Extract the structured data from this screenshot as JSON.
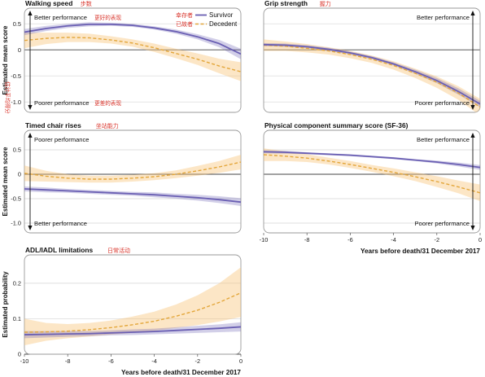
{
  "chart_data": [
    {
      "type": "line",
      "id": "walk",
      "title": "Walking speed",
      "title_zh": "步数",
      "ylabel": "Estimated mean score",
      "ylabel_zh": "估计平均得分",
      "xlim": [
        -10,
        0
      ],
      "ylim": [
        -1.2,
        0.8
      ],
      "yticks": [
        "0.5",
        "0",
        "-0.5",
        "-1.0"
      ],
      "ytick_values": [
        0.5,
        0,
        -0.5,
        -1.0
      ],
      "annotations": {
        "top": "Better performance",
        "top_zh": "更好的表现",
        "bottom": "Poorer performance",
        "bottom_zh": "更差的表现"
      },
      "legend": {
        "position": "top-right",
        "survivor": "Survivor",
        "survivor_zh": "幸存者",
        "decedent": "Decedent",
        "decedent_zh": "已故者"
      },
      "series": [
        {
          "name": "Survivor",
          "x": [
            -10,
            -9,
            -8,
            -7,
            -6,
            -5,
            -4,
            -3,
            -2,
            -1,
            0
          ],
          "y": [
            0.34,
            0.41,
            0.46,
            0.49,
            0.49,
            0.47,
            0.42,
            0.35,
            0.25,
            0.12,
            -0.08
          ],
          "lower": [
            0.28,
            0.36,
            0.42,
            0.45,
            0.46,
            0.44,
            0.39,
            0.31,
            0.2,
            0.05,
            -0.18
          ],
          "upper": [
            0.4,
            0.46,
            0.5,
            0.53,
            0.52,
            0.5,
            0.45,
            0.39,
            0.3,
            0.19,
            0.02
          ]
        },
        {
          "name": "Decedent",
          "x": [
            -10,
            -9,
            -8,
            -7,
            -6,
            -5,
            -4,
            -3,
            -2,
            -1,
            0
          ],
          "y": [
            0.18,
            0.22,
            0.24,
            0.23,
            0.19,
            0.13,
            0.04,
            -0.07,
            -0.18,
            -0.31,
            -0.42
          ],
          "lower": [
            0.03,
            0.11,
            0.15,
            0.15,
            0.12,
            0.06,
            -0.04,
            -0.16,
            -0.29,
            -0.45,
            -0.6
          ],
          "upper": [
            0.33,
            0.33,
            0.33,
            0.31,
            0.26,
            0.2,
            0.12,
            0.02,
            -0.07,
            -0.17,
            -0.24
          ]
        }
      ]
    },
    {
      "type": "line",
      "id": "grip",
      "title": "Grip strength",
      "title_zh": "握力",
      "xlim": [
        -10,
        0
      ],
      "ylim": [
        -1.2,
        0.8
      ],
      "annotations": {
        "top": "Better performance",
        "bottom": "Poorer performance"
      },
      "series": [
        {
          "name": "Survivor",
          "x": [
            -10,
            -9,
            -8,
            -7,
            -6,
            -5,
            -4,
            -3,
            -2,
            -1,
            0
          ],
          "y": [
            0.1,
            0.09,
            0.06,
            0.01,
            -0.06,
            -0.15,
            -0.27,
            -0.42,
            -0.59,
            -0.8,
            -1.04
          ],
          "lower": [
            0.07,
            0.06,
            0.03,
            -0.02,
            -0.09,
            -0.18,
            -0.3,
            -0.46,
            -0.64,
            -0.86,
            -1.1
          ],
          "upper": [
            0.13,
            0.12,
            0.09,
            0.04,
            -0.03,
            -0.12,
            -0.24,
            -0.38,
            -0.54,
            -0.74,
            -0.98
          ]
        },
        {
          "name": "Decedent",
          "x": [
            -10,
            -9,
            -8,
            -7,
            -6,
            -5,
            -4,
            -3,
            -2,
            -1,
            0
          ],
          "y": [
            0.09,
            0.07,
            0.03,
            -0.02,
            -0.09,
            -0.18,
            -0.3,
            -0.45,
            -0.62,
            -0.83,
            -1.1
          ],
          "lower": [
            -0.02,
            -0.02,
            -0.05,
            -0.09,
            -0.16,
            -0.25,
            -0.38,
            -0.54,
            -0.73,
            -0.96,
            -1.26
          ],
          "upper": [
            0.2,
            0.16,
            0.11,
            0.05,
            -0.02,
            -0.11,
            -0.22,
            -0.36,
            -0.51,
            -0.7,
            -0.94
          ]
        }
      ]
    },
    {
      "type": "line",
      "id": "chair",
      "title": "Timed chair rises",
      "title_zh": "坐站能力",
      "ylabel": "Estimated mean score",
      "xlim": [
        -10,
        0
      ],
      "ylim": [
        -1.2,
        0.9
      ],
      "yticks": [
        "0.5",
        "0",
        "-0.5",
        "-1.0"
      ],
      "ytick_values": [
        0.5,
        0,
        -0.5,
        -1.0
      ],
      "annotations": {
        "top": "Poorer performance",
        "bottom": "Better performance"
      },
      "series": [
        {
          "name": "Survivor",
          "x": [
            -10,
            -9,
            -8,
            -7,
            -6,
            -5,
            -4,
            -3,
            -2,
            -1,
            0
          ],
          "y": [
            -0.3,
            -0.32,
            -0.34,
            -0.36,
            -0.38,
            -0.4,
            -0.42,
            -0.45,
            -0.48,
            -0.52,
            -0.57
          ],
          "lower": [
            -0.35,
            -0.37,
            -0.38,
            -0.4,
            -0.42,
            -0.44,
            -0.47,
            -0.5,
            -0.54,
            -0.59,
            -0.65
          ],
          "upper": [
            -0.25,
            -0.27,
            -0.3,
            -0.32,
            -0.34,
            -0.36,
            -0.37,
            -0.4,
            -0.42,
            -0.45,
            -0.49
          ]
        },
        {
          "name": "Decedent",
          "x": [
            -10,
            -9,
            -8,
            -7,
            -6,
            -5,
            -4,
            -3,
            -2,
            -1,
            0
          ],
          "y": [
            0.02,
            -0.04,
            -0.08,
            -0.1,
            -0.1,
            -0.08,
            -0.05,
            0.0,
            0.07,
            0.15,
            0.25
          ],
          "lower": [
            -0.14,
            -0.15,
            -0.16,
            -0.17,
            -0.17,
            -0.15,
            -0.12,
            -0.08,
            -0.03,
            0.03,
            0.1
          ],
          "upper": [
            0.18,
            0.07,
            0.0,
            -0.03,
            -0.03,
            -0.01,
            0.02,
            0.08,
            0.17,
            0.27,
            0.4
          ]
        }
      ]
    },
    {
      "type": "line",
      "id": "pcs",
      "title": "Physical component summary score (SF-36)",
      "xlim": [
        -10,
        0
      ],
      "ylim": [
        -1.2,
        0.9
      ],
      "xticks": [
        "-10",
        "-8",
        "-6",
        "-4",
        "-2",
        "0"
      ],
      "xtick_values": [
        -10,
        -8,
        -6,
        -4,
        -2,
        0
      ],
      "xlabel": "Years before death/31 December 2017",
      "annotations": {
        "top": "Better performance",
        "bottom": "Poorer performance"
      },
      "series": [
        {
          "name": "Survivor",
          "x": [
            -10,
            -9,
            -8,
            -7,
            -6,
            -5,
            -4,
            -3,
            -2,
            -1,
            0
          ],
          "y": [
            0.46,
            0.45,
            0.43,
            0.41,
            0.39,
            0.36,
            0.33,
            0.29,
            0.25,
            0.2,
            0.14
          ],
          "lower": [
            0.43,
            0.42,
            0.41,
            0.39,
            0.37,
            0.34,
            0.31,
            0.27,
            0.22,
            0.16,
            0.09
          ],
          "upper": [
            0.49,
            0.48,
            0.45,
            0.43,
            0.41,
            0.38,
            0.35,
            0.31,
            0.28,
            0.24,
            0.19
          ]
        },
        {
          "name": "Decedent",
          "x": [
            -10,
            -9,
            -8,
            -7,
            -6,
            -5,
            -4,
            -3,
            -2,
            -1,
            0
          ],
          "y": [
            0.4,
            0.37,
            0.33,
            0.27,
            0.2,
            0.12,
            0.04,
            -0.05,
            -0.15,
            -0.26,
            -0.38
          ],
          "lower": [
            0.27,
            0.27,
            0.25,
            0.2,
            0.13,
            0.05,
            -0.04,
            -0.14,
            -0.26,
            -0.39,
            -0.55
          ],
          "upper": [
            0.53,
            0.47,
            0.41,
            0.34,
            0.27,
            0.19,
            0.12,
            0.04,
            -0.04,
            -0.13,
            -0.21
          ]
        }
      ]
    },
    {
      "type": "line",
      "id": "adl",
      "title": "ADL/IADL limitations",
      "title_zh": "日常活动",
      "ylabel": "Estimated probability",
      "xlim": [
        -10,
        0
      ],
      "ylim": [
        0,
        0.28
      ],
      "yticks": [
        "0.2",
        "0.1",
        "0"
      ],
      "ytick_values": [
        0.2,
        0.1,
        0
      ],
      "xticks": [
        "-10",
        "-8",
        "-6",
        "-4",
        "-2",
        "0"
      ],
      "xtick_values": [
        -10,
        -8,
        -6,
        -4,
        -2,
        0
      ],
      "xlabel": "Years before death/31 December 2017",
      "series": [
        {
          "name": "Survivor",
          "x": [
            -10,
            -9,
            -8,
            -7,
            -6,
            -5,
            -4,
            -3,
            -2,
            -1,
            0
          ],
          "y": [
            0.055,
            0.056,
            0.057,
            0.058,
            0.06,
            0.062,
            0.064,
            0.067,
            0.07,
            0.073,
            0.077
          ],
          "lower": [
            0.045,
            0.047,
            0.049,
            0.051,
            0.053,
            0.054,
            0.056,
            0.058,
            0.06,
            0.062,
            0.064
          ],
          "upper": [
            0.065,
            0.065,
            0.065,
            0.065,
            0.067,
            0.07,
            0.072,
            0.076,
            0.08,
            0.084,
            0.09
          ]
        },
        {
          "name": "Decedent",
          "x": [
            -10,
            -9,
            -8,
            -7,
            -6,
            -5,
            -4,
            -3,
            -2,
            -1,
            0
          ],
          "y": [
            0.062,
            0.063,
            0.065,
            0.069,
            0.075,
            0.083,
            0.093,
            0.107,
            0.124,
            0.146,
            0.173
          ],
          "lower": [
            0.025,
            0.038,
            0.045,
            0.05,
            0.055,
            0.06,
            0.066,
            0.074,
            0.082,
            0.092,
            0.105
          ],
          "upper": [
            0.1,
            0.088,
            0.085,
            0.088,
            0.095,
            0.106,
            0.12,
            0.14,
            0.166,
            0.2,
            0.245
          ]
        }
      ]
    }
  ]
}
